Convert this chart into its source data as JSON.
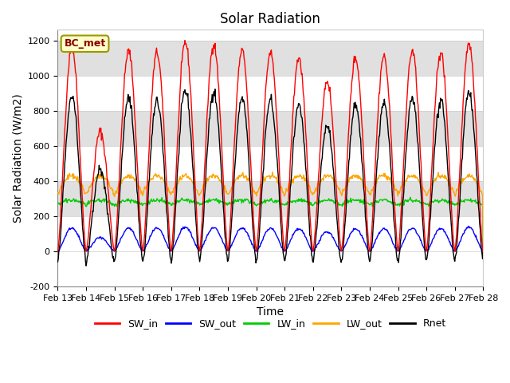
{
  "title": "Solar Radiation",
  "xlabel": "Time",
  "ylabel": "Solar Radiation (W/m2)",
  "ylim": [
    -200,
    1260
  ],
  "yticks": [
    -200,
    0,
    200,
    400,
    600,
    800,
    1000,
    1200
  ],
  "xlim": [
    0,
    15
  ],
  "xtick_labels": [
    "Feb 13",
    "Feb 14",
    "Feb 15",
    "Feb 16",
    "Feb 17",
    "Feb 18",
    "Feb 19",
    "Feb 20",
    "Feb 21",
    "Feb 22",
    "Feb 23",
    "Feb 24",
    "Feb 25",
    "Feb 26",
    "Feb 27",
    "Feb 28"
  ],
  "station_label": "BC_met",
  "legend_entries": [
    "SW_in",
    "SW_out",
    "LW_in",
    "LW_out",
    "Rnet"
  ],
  "line_colors": [
    "#ff0000",
    "#0000ff",
    "#00cc00",
    "#ffa500",
    "#000000"
  ],
  "background_color": "#ffffff",
  "grid_band_color": "#e0e0e0",
  "title_fontsize": 12,
  "label_fontsize": 10,
  "tick_fontsize": 8,
  "n_days": 15,
  "n_points_per_day": 48,
  "sw_in_peaks": [
    1160,
    680,
    1140,
    1130,
    1190,
    1180,
    1140,
    1130,
    1100,
    970,
    1100,
    1110,
    1140,
    1130,
    1180
  ],
  "lw_in_base": 265,
  "lw_in_amp": 25,
  "lw_out_base": 320,
  "lw_out_amp": 110,
  "sw_albedo": 0.115,
  "rnet_night": -100
}
